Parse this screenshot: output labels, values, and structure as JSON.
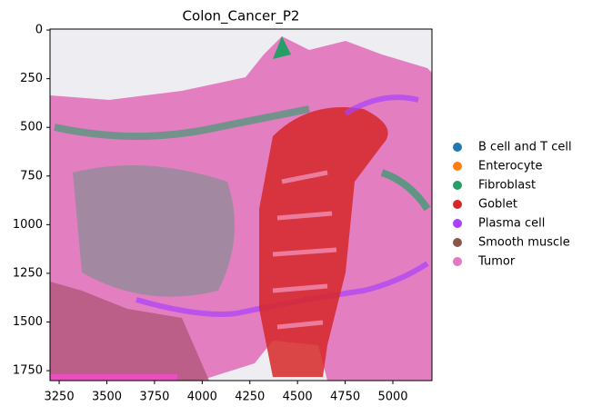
{
  "chart_data": {
    "type": "image",
    "title": "Colon_Cancer_P2",
    "xlim": [
      3202,
      5205
    ],
    "xticks": [
      3250,
      3500,
      3750,
      4000,
      4250,
      4500,
      4750,
      5000
    ],
    "ylim": [
      1801,
      -5
    ],
    "yticks": [
      0,
      250,
      500,
      750,
      1000,
      1250,
      1500,
      1750
    ],
    "series": [
      {
        "name": "B cell and T cell",
        "color": "#1f77b4"
      },
      {
        "name": "Enterocyte",
        "color": "#ff7f0e"
      },
      {
        "name": "Fibroblast",
        "color": "#279e68"
      },
      {
        "name": "Goblet",
        "color": "#d62728"
      },
      {
        "name": "Plasma cell",
        "color": "#aa40fc"
      },
      {
        "name": "Smooth muscle",
        "color": "#8c564b"
      },
      {
        "name": "Tumor",
        "color": "#e377c2"
      }
    ]
  }
}
